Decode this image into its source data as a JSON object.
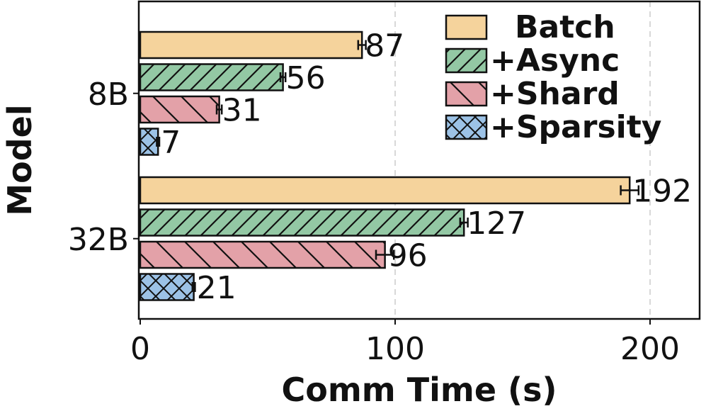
{
  "chart_data": {
    "type": "bar",
    "orientation": "horizontal",
    "categories": [
      "8B",
      "32B"
    ],
    "series": [
      {
        "name": "Batch",
        "values": [
          87,
          192
        ],
        "error": [
          1.5,
          3.5
        ],
        "color": "#f5d39c",
        "hatch": "none"
      },
      {
        "name": "+Async",
        "values": [
          56,
          127
        ],
        "error": [
          1.0,
          1.5
        ],
        "color": "#93c8a4",
        "hatch": "diagonal"
      },
      {
        "name": "+Shard",
        "values": [
          31,
          96
        ],
        "error": [
          1.0,
          3.5
        ],
        "color": "#e3a1a8",
        "hatch": "backdiagonal"
      },
      {
        "name": "+Sparsity",
        "values": [
          7,
          21
        ],
        "error": [
          0.5,
          0.5
        ],
        "color": "#9cc2e6",
        "hatch": "cross"
      }
    ],
    "data_labels": [
      [
        "87",
        "192"
      ],
      [
        "56",
        "127"
      ],
      [
        "31",
        "96"
      ],
      [
        "7",
        "21"
      ]
    ],
    "xlabel": "Comm Time (s)",
    "ylabel": "Model",
    "xlim": [
      0,
      220
    ],
    "xticks": [
      0,
      100,
      200
    ],
    "xtick_labels": [
      "0",
      "100",
      "200"
    ],
    "grid": "x-dashed",
    "legend_position": "top-right"
  }
}
